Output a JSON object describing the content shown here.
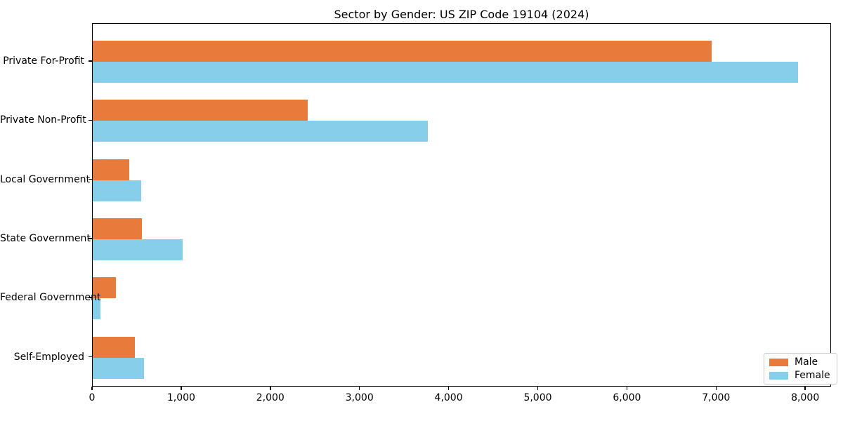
{
  "title": "Sector by Gender: US ZIP Code 19104 (2024)",
  "chart_data": {
    "type": "bar",
    "orientation": "horizontal",
    "title": "Sector by Gender: US ZIP Code 19104 (2024)",
    "categories": [
      "Private For-Profit",
      "Private Non-Profit",
      "Local Government",
      "State Government",
      "Federal Government",
      "Self-Employed"
    ],
    "series": [
      {
        "name": "Male",
        "color": "#e87a3b",
        "values": [
          6940,
          2410,
          410,
          550,
          260,
          470
        ]
      },
      {
        "name": "Female",
        "color": "#87ceeb",
        "values": [
          7910,
          3760,
          545,
          1010,
          90,
          575
        ]
      }
    ],
    "xlabel": "",
    "ylabel": "",
    "xlim": [
      0,
      8290
    ],
    "xticks": [
      0,
      1000,
      2000,
      3000,
      4000,
      5000,
      6000,
      7000,
      8000
    ],
    "xtick_labels": [
      "0",
      "1,000",
      "2,000",
      "3,000",
      "4,000",
      "5,000",
      "6,000",
      "7,000",
      "8,000"
    ],
    "grid": false,
    "legend_position": "lower right"
  },
  "legend": {
    "items": [
      {
        "label": "Male",
        "color": "#e87a3b"
      },
      {
        "label": "Female",
        "color": "#87ceeb"
      }
    ]
  }
}
